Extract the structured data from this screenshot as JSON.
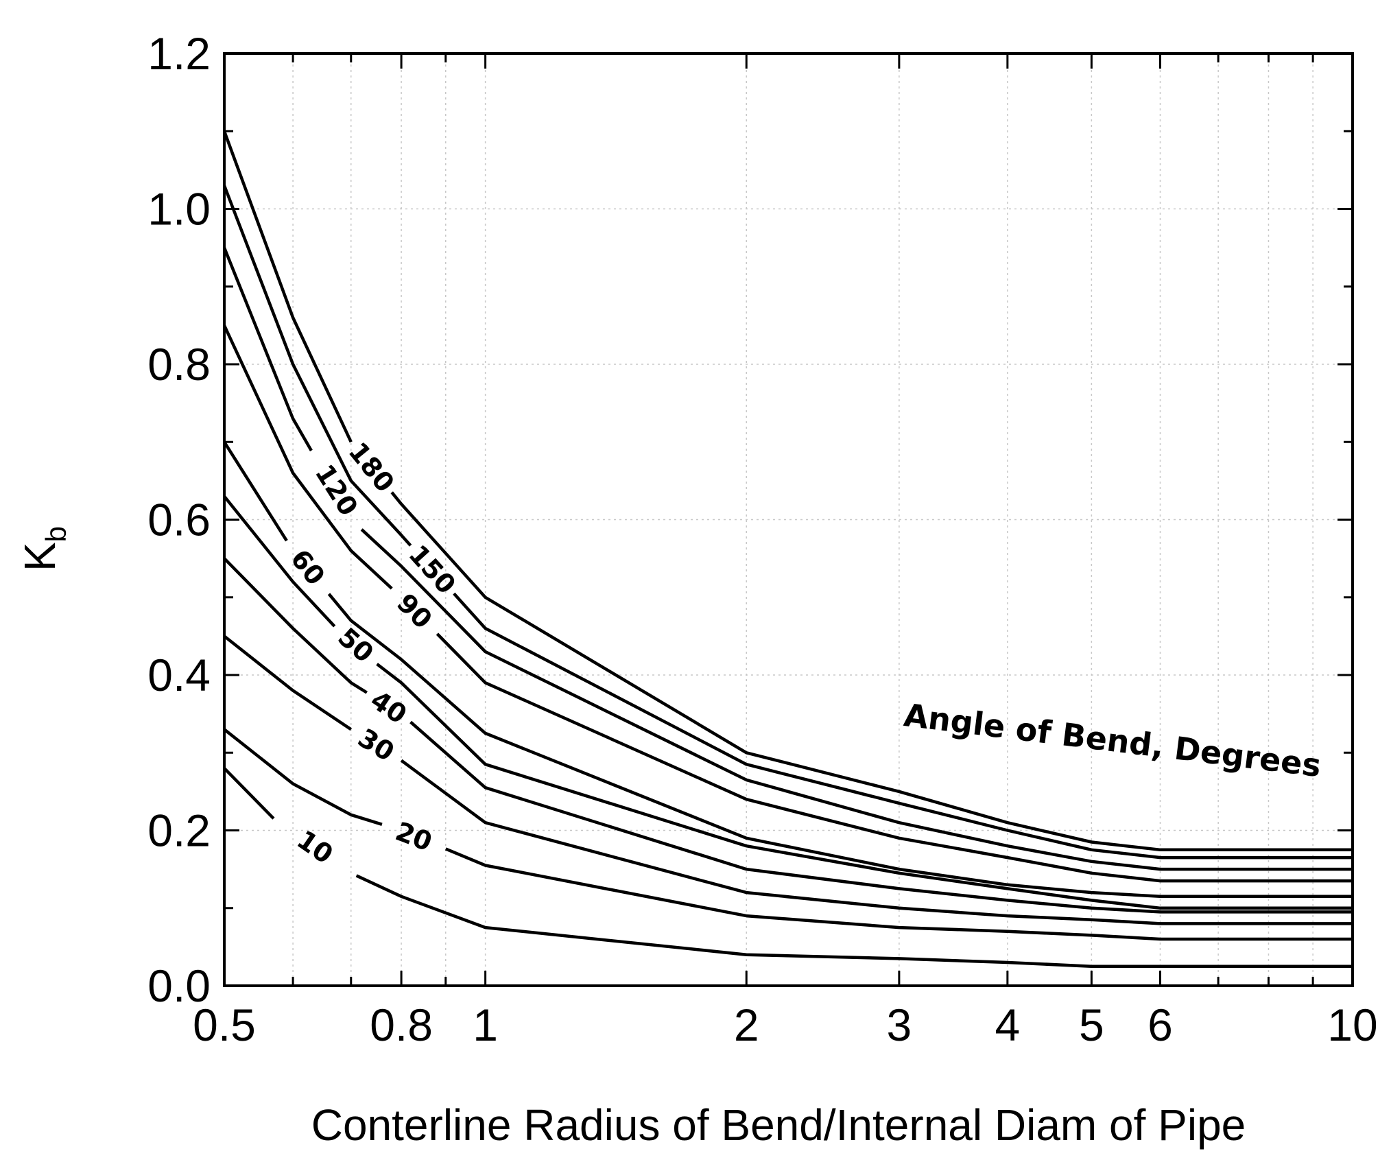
{
  "chart_data": {
    "type": "line",
    "xlabel": "Conterline Radius of Bend/Internal Diam of Pipe",
    "ylabel": "K",
    "ylabel_subscript": "b",
    "annotation": "Angle of Bend, Degrees",
    "xscale": "log",
    "xlim": [
      0.5,
      10
    ],
    "ylim": [
      0.0,
      1.2
    ],
    "grid": true,
    "x_ticks": [
      {
        "value": 0.5,
        "label": "0.5"
      },
      {
        "value": 0.8,
        "label": "0.8"
      },
      {
        "value": 1,
        "label": "1"
      },
      {
        "value": 2,
        "label": "2"
      },
      {
        "value": 3,
        "label": "3"
      },
      {
        "value": 4,
        "label": "4"
      },
      {
        "value": 5,
        "label": "5"
      },
      {
        "value": 6,
        "label": "6"
      },
      {
        "value": 10,
        "label": "10"
      }
    ],
    "x_minor_ticks": [
      0.6,
      0.7,
      0.9,
      7,
      8,
      9
    ],
    "y_ticks": [
      {
        "value": 0.0,
        "label": "0.0"
      },
      {
        "value": 0.2,
        "label": "0.2"
      },
      {
        "value": 0.4,
        "label": "0.4"
      },
      {
        "value": 0.6,
        "label": "0.6"
      },
      {
        "value": 0.8,
        "label": "0.8"
      },
      {
        "value": 1.0,
        "label": "1.0"
      },
      {
        "value": 1.2,
        "label": "1.2"
      }
    ],
    "y_minor_ticks": [
      0.1,
      0.3,
      0.5,
      0.7,
      0.9,
      1.1
    ],
    "x": [
      0.5,
      0.6,
      0.7,
      0.8,
      1,
      2,
      3,
      4,
      5,
      6,
      10
    ],
    "series": [
      {
        "name": "180",
        "values": [
          1.1,
          0.86,
          0.7,
          0.62,
          0.5,
          0.3,
          0.25,
          0.21,
          0.185,
          0.175,
          0.175
        ],
        "gap": [
          0.7,
          0.78
        ]
      },
      {
        "name": "150",
        "values": [
          1.03,
          0.8,
          0.65,
          0.58,
          0.46,
          0.285,
          0.235,
          0.2,
          0.175,
          0.165,
          0.165
        ],
        "gap": [
          0.82,
          0.92
        ]
      },
      {
        "name": "120",
        "values": [
          0.95,
          0.73,
          0.6,
          0.54,
          0.43,
          0.265,
          0.21,
          0.18,
          0.16,
          0.15,
          0.15
        ],
        "gap": [
          0.63,
          0.72
        ]
      },
      {
        "name": "90",
        "values": [
          0.85,
          0.66,
          0.56,
          0.5,
          0.39,
          0.24,
          0.19,
          0.165,
          0.145,
          0.135,
          0.135
        ],
        "gap": [
          0.78,
          0.88
        ]
      },
      {
        "name": "60",
        "values": [
          0.7,
          0.56,
          0.47,
          0.42,
          0.325,
          0.19,
          0.15,
          0.13,
          0.12,
          0.115,
          0.115
        ],
        "gap": [
          0.59,
          0.66
        ]
      },
      {
        "name": "50",
        "values": [
          0.63,
          0.52,
          0.44,
          0.39,
          0.285,
          0.18,
          0.145,
          0.125,
          0.11,
          0.1,
          0.1
        ],
        "gap": [
          0.67,
          0.75
        ]
      },
      {
        "name": "40",
        "values": [
          0.55,
          0.46,
          0.39,
          0.35,
          0.255,
          0.15,
          0.125,
          0.11,
          0.1,
          0.095,
          0.095
        ],
        "gap": [
          0.73,
          0.82
        ]
      },
      {
        "name": "30",
        "values": [
          0.45,
          0.38,
          0.33,
          0.29,
          0.21,
          0.12,
          0.1,
          0.09,
          0.085,
          0.08,
          0.08
        ],
        "gap": [
          0.7,
          0.8
        ]
      },
      {
        "name": "20",
        "values": [
          0.33,
          0.26,
          0.22,
          0.2,
          0.155,
          0.09,
          0.075,
          0.07,
          0.065,
          0.06,
          0.06
        ],
        "gap": [
          0.76,
          0.9
        ]
      },
      {
        "name": "10",
        "values": [
          0.28,
          0.19,
          0.145,
          0.115,
          0.075,
          0.04,
          0.035,
          0.03,
          0.025,
          0.025,
          0.025
        ],
        "gap": [
          0.57,
          0.71
        ]
      }
    ]
  }
}
